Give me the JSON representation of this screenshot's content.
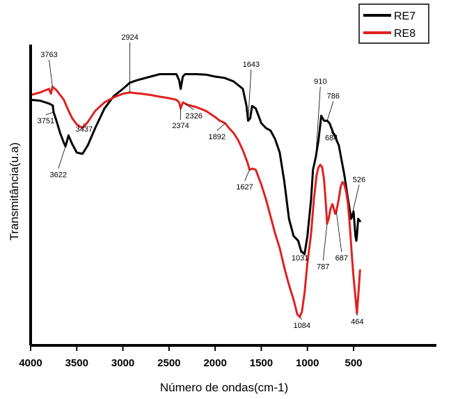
{
  "chart_data": {
    "type": "line",
    "title": "",
    "xlabel": "Número de ondas(cm-1)",
    "ylabel": "Transmitância(u.a)",
    "xlim": [
      4000,
      400
    ],
    "x_reversed": true,
    "y_ticks_shown": false,
    "x_ticks": [
      "4000",
      "3500",
      "3000",
      "2500",
      "2000",
      "1500",
      "1000",
      "500"
    ],
    "x_tick_values": [
      4000,
      3500,
      3000,
      2500,
      2000,
      1500,
      1000,
      500
    ],
    "grid": false,
    "legend_position": "top-right",
    "series": [
      {
        "name": "RE7",
        "color": "#000000",
        "x": [
          4000,
          3900,
          3800,
          3760,
          3751,
          3720,
          3680,
          3640,
          3622,
          3590,
          3550,
          3500,
          3437,
          3380,
          3300,
          3200,
          3100,
          3000,
          2924,
          2850,
          2700,
          2600,
          2500,
          2420,
          2390,
          2374,
          2350,
          2326,
          2300,
          2200,
          2100,
          2000,
          1900,
          1800,
          1700,
          1660,
          1643,
          1620,
          1600,
          1560,
          1520,
          1500,
          1450,
          1400,
          1350,
          1300,
          1250,
          1200,
          1150,
          1100,
          1070,
          1031,
          1000,
          960,
          940,
          910,
          880,
          850,
          820,
          800,
          786,
          760,
          740,
          720,
          700,
          684,
          660,
          640,
          600,
          560,
          526,
          500,
          480,
          470,
          464,
          450,
          430
        ],
        "y": [
          0.905,
          0.902,
          0.89,
          0.882,
          0.855,
          0.82,
          0.77,
          0.73,
          0.715,
          0.76,
          0.725,
          0.69,
          0.685,
          0.72,
          0.79,
          0.87,
          0.92,
          0.95,
          0.975,
          0.985,
          1.0,
          1.01,
          1.01,
          1.01,
          0.985,
          0.95,
          1.0,
          1.01,
          1.01,
          1.01,
          1.008,
          1.0,
          0.995,
          0.98,
          0.95,
          0.88,
          0.82,
          0.83,
          0.88,
          0.87,
          0.83,
          0.81,
          0.79,
          0.78,
          0.745,
          0.69,
          0.57,
          0.42,
          0.35,
          0.33,
          0.29,
          0.275,
          0.35,
          0.5,
          0.62,
          0.67,
          0.74,
          0.84,
          0.82,
          0.82,
          0.82,
          0.81,
          0.79,
          0.77,
          0.76,
          0.74,
          0.72,
          0.68,
          0.6,
          0.5,
          0.42,
          0.45,
          0.35,
          0.33,
          0.35,
          0.42,
          0.41
        ]
      },
      {
        "name": "RE8",
        "color": "#e02020",
        "x": [
          4000,
          3900,
          3800,
          3780,
          3763,
          3720,
          3680,
          3640,
          3600,
          3550,
          3500,
          3437,
          3380,
          3300,
          3200,
          3100,
          3000,
          2924,
          2800,
          2700,
          2600,
          2500,
          2420,
          2390,
          2374,
          2350,
          2326,
          2300,
          2200,
          2100,
          2000,
          1950,
          1892,
          1850,
          1800,
          1750,
          1700,
          1650,
          1627,
          1600,
          1560,
          1500,
          1450,
          1400,
          1350,
          1300,
          1250,
          1200,
          1150,
          1110,
          1084,
          1060,
          1030,
          1000,
          960,
          930,
          900,
          880,
          860,
          840,
          820,
          800,
          787,
          770,
          750,
          730,
          720,
          700,
          687,
          660,
          640,
          620,
          600,
          580,
          560,
          540,
          520,
          500,
          480,
          464,
          450,
          430
        ],
        "y": [
          0.925,
          0.935,
          0.95,
          0.93,
          0.958,
          0.945,
          0.925,
          0.905,
          0.87,
          0.83,
          0.805,
          0.79,
          0.815,
          0.86,
          0.895,
          0.915,
          0.93,
          0.935,
          0.93,
          0.925,
          0.918,
          0.912,
          0.905,
          0.895,
          0.87,
          0.895,
          0.89,
          0.885,
          0.875,
          0.86,
          0.835,
          0.82,
          0.81,
          0.79,
          0.77,
          0.74,
          0.7,
          0.65,
          0.62,
          0.625,
          0.62,
          0.56,
          0.5,
          0.43,
          0.36,
          0.3,
          0.22,
          0.15,
          0.09,
          0.03,
          0.02,
          0.04,
          0.12,
          0.24,
          0.36,
          0.5,
          0.6,
          0.63,
          0.64,
          0.63,
          0.58,
          0.48,
          0.4,
          0.42,
          0.46,
          0.48,
          0.47,
          0.44,
          0.45,
          0.5,
          0.55,
          0.57,
          0.56,
          0.53,
          0.48,
          0.39,
          0.28,
          0.18,
          0.1,
          0.035,
          0.1,
          0.21
        ]
      }
    ],
    "annotations": [
      {
        "text": "3763",
        "x": 3763,
        "series": 1,
        "label_x": 3800,
        "label_y": 1.08
      },
      {
        "text": "3751",
        "x": 3751,
        "series": 0,
        "label_x": 3835,
        "label_y": 0.81
      },
      {
        "text": "3622",
        "x": 3622,
        "series": 0,
        "label_x": 3700,
        "label_y": 0.59
      },
      {
        "text": "3437",
        "x": 3437,
        "series": 1,
        "label_x": 3420,
        "label_y": 0.775
      },
      {
        "text": "2924",
        "x": 2924,
        "series": 1,
        "label_x": 2924,
        "label_y": 1.15
      },
      {
        "text": "2374",
        "x": 2374,
        "series": 1,
        "label_x": 2374,
        "label_y": 0.79
      },
      {
        "text": "2326",
        "x": 2326,
        "series": 1,
        "label_x": 2230,
        "label_y": 0.83
      },
      {
        "text": "1892",
        "x": 1892,
        "series": 1,
        "label_x": 1980,
        "label_y": 0.745
      },
      {
        "text": "1643",
        "x": 1643,
        "series": 0,
        "label_x": 1610,
        "label_y": 1.04
      },
      {
        "text": "1627",
        "x": 1627,
        "series": 1,
        "label_x": 1680,
        "label_y": 0.54
      },
      {
        "text": "1031",
        "x": 1031,
        "series": 0,
        "label_x": 1080,
        "label_y": 0.25
      },
      {
        "text": "1084",
        "x": 1084,
        "series": 1,
        "label_x": 1060,
        "label_y": -0.025
      },
      {
        "text": "910",
        "x": 910,
        "series": 0,
        "label_x": 860,
        "label_y": 0.97
      },
      {
        "text": "786",
        "x": 786,
        "series": 0,
        "label_x": 720,
        "label_y": 0.91
      },
      {
        "text": "684",
        "x": 684,
        "series": 0,
        "label_x": 740,
        "label_y": 0.74
      },
      {
        "text": "787",
        "x": 787,
        "series": 1,
        "label_x": 830,
        "label_y": 0.215
      },
      {
        "text": "687",
        "x": 687,
        "series": 1,
        "label_x": 630,
        "label_y": 0.25
      },
      {
        "text": "526",
        "x": 526,
        "series": 0,
        "label_x": 440,
        "label_y": 0.57
      },
      {
        "text": "464",
        "x": 464,
        "series": 1,
        "label_x": 460,
        "label_y": -0.01
      }
    ]
  }
}
